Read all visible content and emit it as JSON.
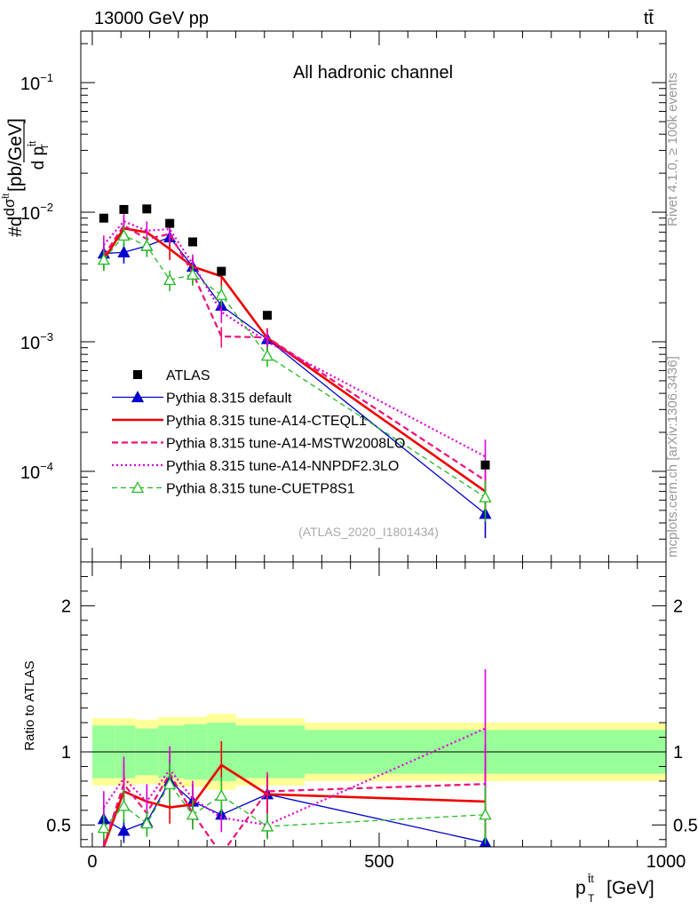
{
  "header": {
    "energy_label": "13000 GeV pp",
    "process_label": "tt̄"
  },
  "main_panel": {
    "title": "All hadronic channel",
    "ylabel_prefix": "#d",
    "ylabel_sigma": "dσ",
    "ylabel_sigma_sup": "t̄t",
    "ylabel_denom": "d p",
    "ylabel_denom_sup": "t̄t",
    "ylabel_denom_sub": "T",
    "ylabel_unit": "[pb/GeV]",
    "watermark": "(ATLAS_2020_I1801434)",
    "ytick_labels": [
      {
        "base": "10",
        "exp": "−1"
      },
      {
        "base": "10",
        "exp": "−2"
      },
      {
        "base": "10",
        "exp": "−3"
      },
      {
        "base": "10",
        "exp": "−4"
      }
    ]
  },
  "ratio_panel": {
    "ylabel": "Ratio to ATLAS",
    "ytick_labels": [
      "2",
      "1",
      "0.5"
    ]
  },
  "xaxis": {
    "label": "[GeV]",
    "label_p": "p",
    "label_sup": "t̄t",
    "label_sub": "T",
    "tick_labels": [
      "0",
      "500",
      "1000"
    ]
  },
  "side_text": {
    "rivet": "Rivet 4.1.0, ≥ 100k events",
    "mcplots": "mcplots.cern.ch [arXiv:1306.3436]"
  },
  "legend": [
    {
      "label": "ATLAS",
      "color": "#000000",
      "style": "square"
    },
    {
      "label": "Pythia 8.315 default",
      "color": "#0000cc",
      "style": "solid-tri"
    },
    {
      "label": "Pythia 8.315 tune-A14-CTEQL1",
      "color": "#ee0000",
      "style": "thick"
    },
    {
      "label": "Pythia 8.315 tune-A14-MSTW2008LO",
      "color": "#ee1177",
      "style": "dashed"
    },
    {
      "label": "Pythia 8.315 tune-A14-NNPDF2.3LO",
      "color": "#dd00dd",
      "style": "dotted"
    },
    {
      "label": "Pythia 8.315 tune-CUETP8S1",
      "color": "#22bb22",
      "style": "dashed-opentri"
    }
  ],
  "chart_data": {
    "type": "line",
    "title": "All hadronic channel",
    "xlabel": "p_T^{tt} [GeV]",
    "ylabel": "d sigma / d p_T^{tt} [pb/GeV]",
    "xlim": [
      -20,
      1000
    ],
    "ylim_main_log": [
      2e-05,
      0.25
    ],
    "ylim_ratio": [
      0.35,
      2.3
    ],
    "x": [
      20,
      55,
      95,
      135,
      175,
      225,
      305,
      685
    ],
    "data": {
      "name": "ATLAS",
      "values": [
        0.009,
        0.0105,
        0.0106,
        0.0082,
        0.0059,
        0.0035,
        0.0016,
        0.000112
      ],
      "band_edges": [
        0,
        40,
        75,
        115,
        160,
        200,
        250,
        370,
        1000
      ],
      "band_stat": [
        0.18,
        0.18,
        0.16,
        0.18,
        0.19,
        0.2,
        0.18,
        0.15
      ],
      "band_total": [
        0.23,
        0.23,
        0.22,
        0.24,
        0.24,
        0.26,
        0.23,
        0.2
      ]
    },
    "series": [
      {
        "name": "Pythia 8.315 default",
        "color": "#0000cc",
        "values": [
          0.0048,
          0.0049,
          0.0055,
          0.0064,
          0.0038,
          0.0019,
          0.00105,
          4.7e-05
        ],
        "ratio": [
          0.54,
          0.46,
          0.52,
          0.8,
          0.66,
          0.57,
          0.71,
          0.38
        ]
      },
      {
        "name": "Pythia 8.315 tune-A14-CTEQL1",
        "color": "#ee0000",
        "values": [
          0.0043,
          0.0075,
          0.007,
          0.0052,
          0.0038,
          0.0032,
          0.00107,
          7e-05
        ],
        "ratio": [
          0.35,
          0.73,
          0.66,
          0.62,
          0.64,
          0.91,
          0.71,
          0.66
        ]
      },
      {
        "name": "Pythia 8.315 tune-A14-MSTW2008LO",
        "color": "#ee1177",
        "values": [
          0.0046,
          0.0079,
          0.0062,
          0.0068,
          0.0034,
          0.0011,
          0.00108,
          8.5e-05
        ],
        "ratio": [
          0.36,
          0.78,
          0.58,
          0.85,
          0.58,
          0.3,
          0.73,
          0.78
        ]
      },
      {
        "name": "Pythia 8.315 tune-A14-NNPDF2.3LO",
        "color": "#dd00dd",
        "values": [
          0.0056,
          0.0085,
          0.0072,
          0.0074,
          0.004,
          0.0017,
          0.001,
          0.00013
        ],
        "ratio": [
          0.62,
          0.82,
          0.66,
          0.88,
          0.68,
          0.55,
          0.5,
          1.16
        ]
      },
      {
        "name": "Pythia 8.315 tune-CUETP8S1",
        "color": "#22bb22",
        "values": [
          0.0043,
          0.0066,
          0.0055,
          0.003,
          0.0033,
          0.0023,
          0.00078,
          6.3e-05
        ],
        "ratio": [
          0.48,
          0.63,
          0.51,
          0.78,
          0.57,
          0.7,
          0.49,
          0.57
        ]
      }
    ]
  }
}
